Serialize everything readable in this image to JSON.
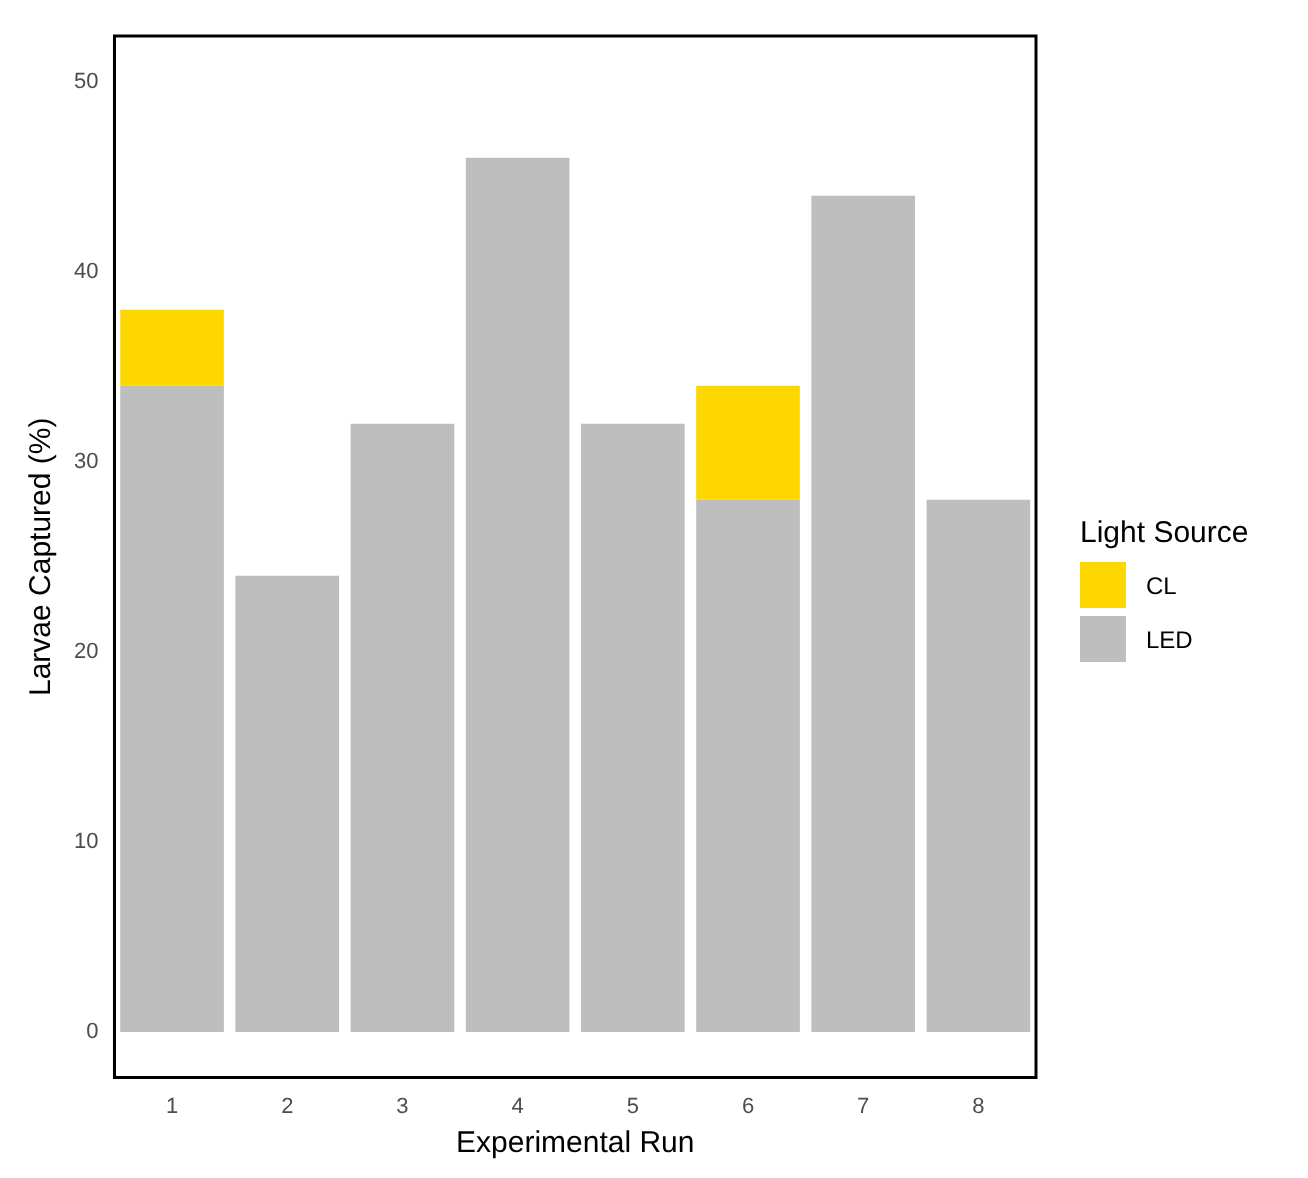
{
  "chart_data": {
    "type": "bar",
    "stacked": true,
    "xlabel": "Experimental Run",
    "ylabel": "Larvae Captured (%)",
    "legend_title": "Light Source",
    "legend": "right",
    "grid": false,
    "categories": [
      "1",
      "2",
      "3",
      "4",
      "5",
      "6",
      "7",
      "8"
    ],
    "series": [
      {
        "name": "LED",
        "color": "#bebebe",
        "values": [
          34,
          24,
          32,
          46,
          32,
          28,
          44,
          28
        ]
      },
      {
        "name": "CL",
        "color": "#ffd700",
        "values": [
          4,
          null,
          null,
          null,
          null,
          6,
          null,
          null
        ]
      }
    ],
    "ylim": [
      -2.4,
      52.4
    ],
    "yticks": [
      0,
      10,
      20,
      30,
      40,
      50
    ]
  }
}
